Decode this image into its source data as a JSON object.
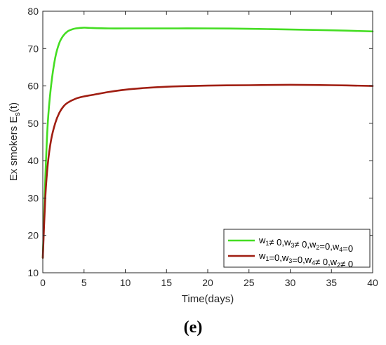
{
  "caption": "(e)",
  "chart_data": {
    "type": "line",
    "title": "",
    "xlabel": "Time(days)",
    "ylabel_main": "Ex smokers E",
    "ylabel_sub": "s",
    "ylabel_tail": "(t)",
    "xlim": [
      0,
      40
    ],
    "ylim": [
      10,
      80
    ],
    "xticks": [
      0,
      5,
      10,
      15,
      20,
      25,
      30,
      35,
      40
    ],
    "yticks": [
      10,
      20,
      30,
      40,
      50,
      60,
      70,
      80
    ],
    "legend_position": "bottom-right",
    "series": [
      {
        "name_parts": [
          {
            "t": "w",
            "sub": "1"
          },
          {
            "t": "≠ 0,w",
            "sub": "3"
          },
          {
            "t": "≠ 0,w",
            "sub": "2"
          },
          {
            "t": "=0,w",
            "sub": "4"
          },
          {
            "t": "=0",
            "sub": ""
          }
        ],
        "color": "#44dd22",
        "x": [
          0,
          0.3,
          0.6,
          1.0,
          1.5,
          2.0,
          2.5,
          3.0,
          3.5,
          4.0,
          5.0,
          6.0,
          8.0,
          10,
          15,
          20,
          25,
          30,
          35,
          40
        ],
        "y": [
          14,
          35,
          50,
          60,
          67.5,
          71.5,
          73.5,
          74.6,
          75.1,
          75.4,
          75.6,
          75.5,
          75.4,
          75.4,
          75.4,
          75.4,
          75.3,
          75.1,
          74.9,
          74.6
        ]
      },
      {
        "name_parts": [
          {
            "t": "w",
            "sub": "1"
          },
          {
            "t": "=0,w",
            "sub": "3"
          },
          {
            "t": "=0,w",
            "sub": "4"
          },
          {
            "t": "≠ 0,w",
            "sub": "2"
          },
          {
            "t": "≠ 0",
            "sub": ""
          }
        ],
        "color": "#a01e12",
        "x": [
          0,
          0.3,
          0.6,
          1.0,
          1.5,
          2.0,
          2.5,
          3.0,
          4.0,
          5.0,
          6.0,
          8.0,
          10,
          12,
          15,
          20,
          25,
          30,
          35,
          40
        ],
        "y": [
          14,
          30,
          39,
          45.5,
          50,
          52.8,
          54.5,
          55.5,
          56.6,
          57.2,
          57.6,
          58.4,
          59.0,
          59.4,
          59.8,
          60.1,
          60.2,
          60.3,
          60.2,
          60.0
        ]
      }
    ]
  }
}
